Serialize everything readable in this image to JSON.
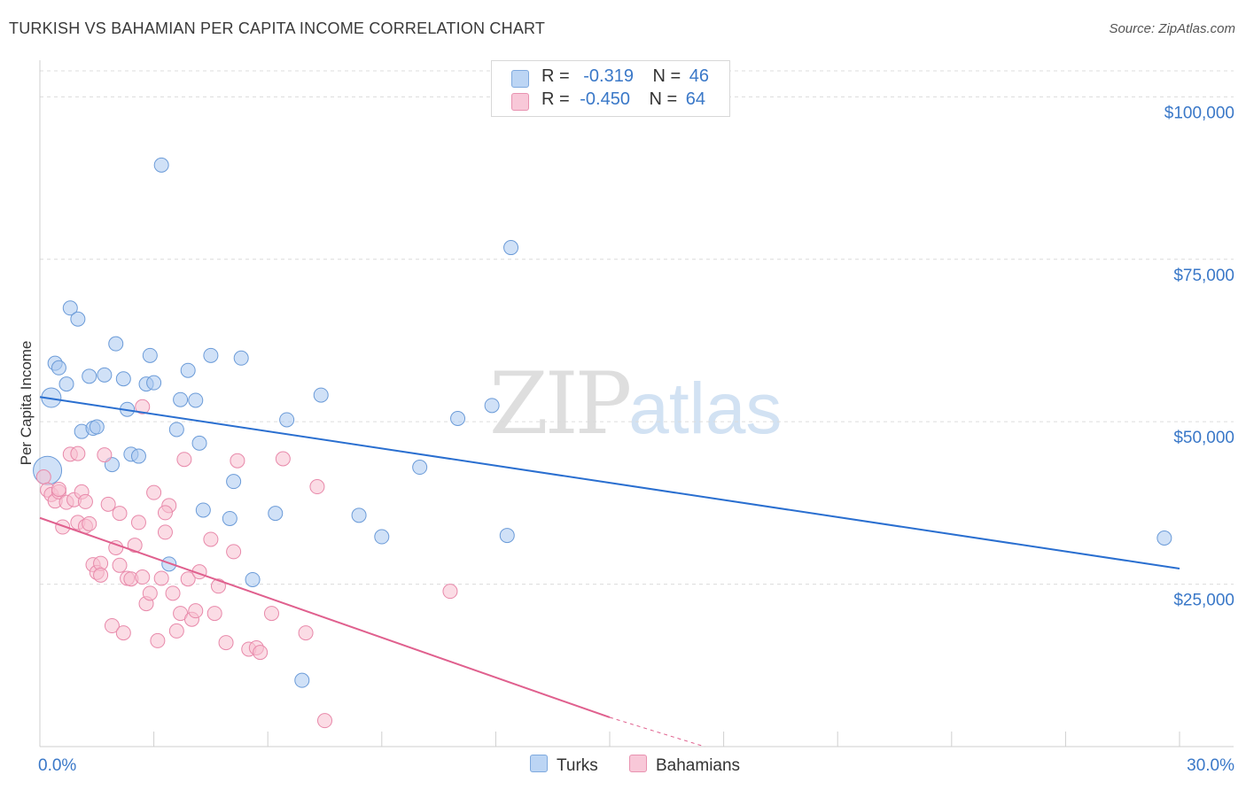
{
  "title": "TURKISH VS BAHAMIAN PER CAPITA INCOME CORRELATION CHART",
  "source": "Source: ZipAtlas.com",
  "watermark": {
    "zip": "ZIP",
    "atlas": "atlas"
  },
  "legend": {
    "rows": [
      {
        "r_label": "R =",
        "r_value": "-0.319",
        "n_label": "N =",
        "n_value": "46"
      },
      {
        "r_label": "R =",
        "r_value": "-0.450",
        "n_label": "N =",
        "n_value": "64"
      }
    ]
  },
  "bottom_legend": {
    "turks": "Turks",
    "bahamians": "Bahamians"
  },
  "colors": {
    "turks_fill": "#a9c8f0",
    "turks_stroke": "#6b9bd8",
    "turks_line": "#2a6fd0",
    "bahamians_fill": "#f7bfd0",
    "bahamians_stroke": "#e889aa",
    "bahamians_line": "#e0608e",
    "axis_label": "#3a78c8",
    "grid": "#dcdcdc"
  },
  "chart_data": {
    "type": "scatter",
    "title": "TURKISH VS BAHAMIAN PER CAPITA INCOME CORRELATION CHART",
    "xlabel": "",
    "ylabel": "Per Capita Income",
    "xlim": [
      0,
      30
    ],
    "ylim": [
      0,
      104000
    ],
    "x_tick_labels": [
      "0.0%",
      "30.0%"
    ],
    "y_ticks": [
      25000,
      50000,
      75000,
      100000
    ],
    "y_tick_labels": [
      "$25,000",
      "$50,000",
      "$75,000",
      "$100,000"
    ],
    "grid": true,
    "legend_position": "top-center",
    "series": [
      {
        "name": "Turks",
        "r": -0.319,
        "n": 46,
        "trend": {
          "x": [
            0,
            30
          ],
          "y": [
            53800,
            27400
          ]
        },
        "points": [
          [
            0.2,
            42500
          ],
          [
            0.3,
            53700
          ],
          [
            0.4,
            59000
          ],
          [
            0.5,
            58300
          ],
          [
            0.7,
            55800
          ],
          [
            0.8,
            67500
          ],
          [
            1.0,
            65800
          ],
          [
            1.1,
            48500
          ],
          [
            1.3,
            57000
          ],
          [
            1.4,
            49000
          ],
          [
            1.5,
            49200
          ],
          [
            1.7,
            57200
          ],
          [
            1.9,
            43400
          ],
          [
            2.0,
            62000
          ],
          [
            2.2,
            56600
          ],
          [
            2.3,
            51900
          ],
          [
            2.4,
            45000
          ],
          [
            2.6,
            44700
          ],
          [
            2.8,
            55800
          ],
          [
            2.9,
            60200
          ],
          [
            3.0,
            56000
          ],
          [
            3.2,
            89500
          ],
          [
            3.4,
            28100
          ],
          [
            3.6,
            48800
          ],
          [
            3.7,
            53400
          ],
          [
            3.9,
            57900
          ],
          [
            4.1,
            53300
          ],
          [
            4.2,
            46700
          ],
          [
            4.3,
            36400
          ],
          [
            4.5,
            60200
          ],
          [
            5.0,
            35100
          ],
          [
            5.1,
            40800
          ],
          [
            5.3,
            59800
          ],
          [
            5.6,
            25700
          ],
          [
            6.2,
            35900
          ],
          [
            6.5,
            50300
          ],
          [
            6.9,
            10200
          ],
          [
            7.4,
            54100
          ],
          [
            8.4,
            35600
          ],
          [
            9.0,
            32300
          ],
          [
            10.0,
            43000
          ],
          [
            11.0,
            50500
          ],
          [
            11.9,
            52500
          ],
          [
            12.3,
            32500
          ],
          [
            12.4,
            76800
          ],
          [
            29.6,
            32100
          ]
        ]
      },
      {
        "name": "Bahamians",
        "r": -0.45,
        "n": 64,
        "trend": {
          "x": [
            0,
            15
          ],
          "y": [
            35200,
            4500
          ]
        },
        "trend_extension": {
          "x": [
            15,
            17.5
          ],
          "y": [
            4500,
            0
          ]
        },
        "points": [
          [
            0.1,
            41500
          ],
          [
            0.2,
            39500
          ],
          [
            0.3,
            38800
          ],
          [
            0.4,
            37800
          ],
          [
            0.5,
            39200
          ],
          [
            0.6,
            33800
          ],
          [
            0.7,
            37600
          ],
          [
            0.8,
            45000
          ],
          [
            0.9,
            38000
          ],
          [
            1.0,
            34500
          ],
          [
            1.1,
            39200
          ],
          [
            1.2,
            33900
          ],
          [
            1.3,
            34300
          ],
          [
            1.4,
            28000
          ],
          [
            1.5,
            26800
          ],
          [
            1.6,
            28200
          ],
          [
            1.7,
            44900
          ],
          [
            1.8,
            37300
          ],
          [
            1.9,
            18600
          ],
          [
            2.0,
            30600
          ],
          [
            2.1,
            35900
          ],
          [
            2.2,
            17500
          ],
          [
            2.3,
            25900
          ],
          [
            2.4,
            25800
          ],
          [
            2.5,
            31000
          ],
          [
            2.6,
            34500
          ],
          [
            2.7,
            52300
          ],
          [
            2.8,
            22000
          ],
          [
            2.9,
            23600
          ],
          [
            3.0,
            39100
          ],
          [
            3.1,
            16300
          ],
          [
            3.2,
            25900
          ],
          [
            3.3,
            33000
          ],
          [
            3.4,
            37100
          ],
          [
            3.5,
            23600
          ],
          [
            3.6,
            17800
          ],
          [
            3.7,
            20500
          ],
          [
            3.8,
            44200
          ],
          [
            3.9,
            25800
          ],
          [
            4.0,
            19600
          ],
          [
            4.2,
            26900
          ],
          [
            4.5,
            31900
          ],
          [
            4.6,
            20500
          ],
          [
            4.7,
            24700
          ],
          [
            4.9,
            16000
          ],
          [
            5.1,
            30000
          ],
          [
            5.2,
            44000
          ],
          [
            5.5,
            15000
          ],
          [
            5.7,
            15200
          ],
          [
            5.8,
            14500
          ],
          [
            6.1,
            20500
          ],
          [
            6.4,
            44300
          ],
          [
            7.0,
            17500
          ],
          [
            7.3,
            40000
          ],
          [
            7.5,
            4000
          ],
          [
            10.8,
            23900
          ],
          [
            2.7,
            26100
          ],
          [
            3.3,
            36000
          ],
          [
            1.0,
            45100
          ],
          [
            0.5,
            39600
          ],
          [
            1.2,
            37700
          ],
          [
            2.1,
            27900
          ],
          [
            4.1,
            20900
          ],
          [
            1.6,
            26400
          ]
        ]
      }
    ]
  }
}
